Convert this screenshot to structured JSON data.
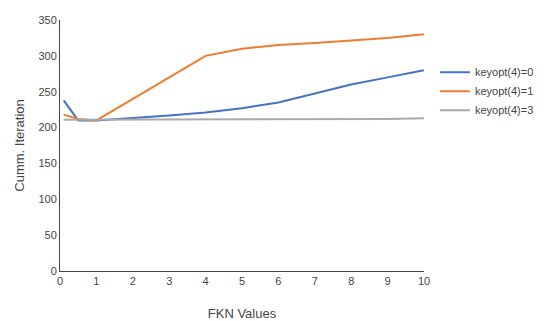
{
  "chart_data": {
    "type": "line",
    "xlabel": "FKN Values",
    "ylabel": "Cumm. Iteration",
    "x": [
      0.1,
      0.5,
      1.0,
      2.0,
      3.0,
      4.0,
      5.0,
      6.0,
      7.0,
      8.0,
      9.0,
      10.0
    ],
    "series": [
      {
        "name": "keyopt(4)=0",
        "color": "#4472C4",
        "values": [
          238,
          210,
          210,
          213,
          217,
          221,
          227,
          235,
          248,
          260,
          270,
          280
        ]
      },
      {
        "name": "keyopt(4)=1",
        "color": "#ED7D31",
        "values": [
          218,
          212,
          210,
          240,
          270,
          300,
          310,
          315,
          318,
          321,
          325,
          330
        ]
      },
      {
        "name": "keyopt(4)=3",
        "color": "#AAAAAA",
        "values": [
          211,
          211,
          211,
          211,
          211,
          211,
          211,
          212,
          212,
          212,
          212,
          213
        ]
      }
    ],
    "xlim": [
      0,
      10
    ],
    "ylim": [
      0,
      350
    ],
    "xticks": [
      0,
      1,
      2,
      3,
      4,
      5,
      6,
      7,
      8,
      9,
      10
    ],
    "yticks": [
      0,
      50,
      100,
      150,
      200,
      250,
      300,
      350
    ],
    "grid": false,
    "legend": "right"
  }
}
